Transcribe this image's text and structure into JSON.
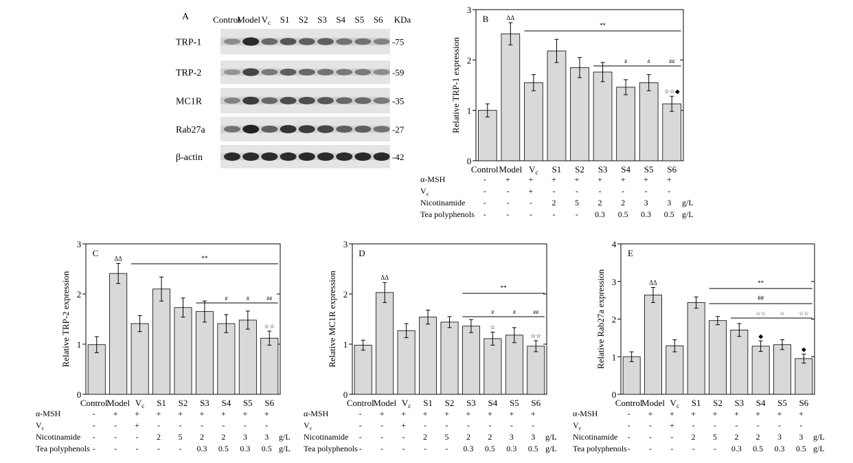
{
  "blot": {
    "panel_label": "A",
    "lanes": [
      "Control",
      "Model",
      "Vc",
      "S1",
      "S2",
      "S3",
      "S4",
      "S5",
      "S6"
    ],
    "kda_header": "KDa",
    "rows": [
      {
        "protein": "TRP-1",
        "kda": "-75",
        "intensity": [
          0.35,
          0.9,
          0.55,
          0.65,
          0.6,
          0.6,
          0.5,
          0.5,
          0.4
        ]
      },
      {
        "protein": "TRP-2",
        "kda": "-59",
        "intensity": [
          0.3,
          0.75,
          0.45,
          0.6,
          0.55,
          0.5,
          0.45,
          0.45,
          0.35
        ]
      },
      {
        "protein": "MC1R",
        "kda": "-35",
        "intensity": [
          0.4,
          0.8,
          0.55,
          0.7,
          0.7,
          0.65,
          0.55,
          0.55,
          0.45
        ]
      },
      {
        "protein": "Rab27a",
        "kda": "-27",
        "intensity": [
          0.5,
          0.95,
          0.6,
          0.85,
          0.8,
          0.75,
          0.6,
          0.6,
          0.5
        ]
      },
      {
        "protein": "β-actin",
        "kda": "-42",
        "intensity": [
          0.9,
          0.9,
          0.9,
          0.9,
          0.9,
          0.9,
          0.9,
          0.9,
          0.9
        ]
      }
    ]
  },
  "treatment_table": {
    "rows": [
      {
        "label": "α-MSH",
        "values": [
          "-",
          "+",
          "+",
          "+",
          "+",
          "+",
          "+",
          "+",
          "+"
        ],
        "unit": ""
      },
      {
        "label": "Vc",
        "values": [
          "-",
          "-",
          "+",
          "-",
          "-",
          "-",
          "-",
          "-",
          "-"
        ],
        "unit": ""
      },
      {
        "label": "Nicotinamide",
        "values": [
          "-",
          "-",
          "-",
          "2",
          "5",
          "2",
          "2",
          "3",
          "3"
        ],
        "unit": "g/L"
      },
      {
        "label": "Tea polyphenols",
        "values": [
          "-",
          "-",
          "-",
          "-",
          "-",
          "0.3",
          "0.5",
          "0.3",
          "0.5"
        ],
        "unit": "g/L"
      }
    ]
  },
  "chart_data": [
    {
      "type": "bar",
      "panel": "B",
      "categories": [
        "Control",
        "Model",
        "Vc",
        "S1",
        "S2",
        "S3",
        "S4",
        "S5",
        "S6"
      ],
      "values": [
        1.0,
        2.52,
        1.55,
        2.18,
        1.85,
        1.76,
        1.46,
        1.55,
        1.13
      ],
      "errors": [
        0.13,
        0.22,
        0.16,
        0.23,
        0.2,
        0.19,
        0.15,
        0.16,
        0.15
      ],
      "ylabel": "Relative TRP-1 expression",
      "ylim": [
        0,
        3
      ],
      "yticks": [
        0,
        1,
        2,
        3
      ],
      "bar_marks": [
        "",
        "ΔΔ",
        "",
        "",
        "",
        "",
        "",
        "",
        "☆☆◆"
      ],
      "brackets": [
        {
          "from": 2,
          "to": 8,
          "label": "**"
        },
        {
          "from": 5,
          "to": 8,
          "label": "",
          "segment_labels": [
            "#",
            "#",
            "##"
          ]
        }
      ]
    },
    {
      "type": "bar",
      "panel": "C",
      "categories": [
        "Control",
        "Model",
        "Vc",
        "S1",
        "S2",
        "S3",
        "S4",
        "S5",
        "S6"
      ],
      "values": [
        0.99,
        2.41,
        1.41,
        2.1,
        1.73,
        1.65,
        1.41,
        1.48,
        1.12
      ],
      "errors": [
        0.16,
        0.2,
        0.16,
        0.24,
        0.19,
        0.21,
        0.18,
        0.18,
        0.14
      ],
      "ylabel": "Relative TRP-2 expression",
      "ylim": [
        0,
        3
      ],
      "yticks": [
        0,
        1,
        2,
        3
      ],
      "bar_marks": [
        "",
        "ΔΔ",
        "",
        "",
        "",
        "",
        "",
        "",
        "☆☆"
      ],
      "brackets": [
        {
          "from": 2,
          "to": 8,
          "label": "**"
        },
        {
          "from": 5,
          "to": 8,
          "label": "",
          "segment_labels": [
            "#",
            "#",
            "##"
          ]
        }
      ]
    },
    {
      "type": "bar",
      "panel": "D",
      "categories": [
        "Control",
        "Model",
        "Vc",
        "S1",
        "S2",
        "S3",
        "S4",
        "S5",
        "S6"
      ],
      "values": [
        0.98,
        2.03,
        1.27,
        1.54,
        1.44,
        1.36,
        1.11,
        1.18,
        0.96
      ],
      "errors": [
        0.1,
        0.2,
        0.14,
        0.14,
        0.11,
        0.13,
        0.13,
        0.15,
        0.11
      ],
      "ylabel": "Relative MC1R expression",
      "ylim": [
        0,
        3
      ],
      "yticks": [
        0,
        1,
        2,
        3
      ],
      "bar_marks": [
        "",
        "ΔΔ",
        "",
        "",
        "",
        "",
        "☆",
        "",
        "☆☆"
      ],
      "brackets": [
        {
          "from": 5,
          "to": 8,
          "label": "**"
        },
        {
          "from": 5,
          "to": 8,
          "label": "",
          "segment_labels": [
            "#",
            "#",
            "##"
          ]
        }
      ]
    },
    {
      "type": "bar",
      "panel": "E",
      "categories": [
        "Control",
        "Model",
        "Vc",
        "S1",
        "S2",
        "S3",
        "S4",
        "S5",
        "S6"
      ],
      "values": [
        1.0,
        2.64,
        1.29,
        2.44,
        1.96,
        1.71,
        1.28,
        1.32,
        0.95
      ],
      "errors": [
        0.13,
        0.2,
        0.16,
        0.15,
        0.11,
        0.17,
        0.14,
        0.13,
        0.12
      ],
      "ylabel": "Relative Rab27a expression",
      "ylim": [
        0,
        4
      ],
      "yticks": [
        0,
        1,
        2,
        3,
        4
      ],
      "bar_marks": [
        "",
        "ΔΔ",
        "",
        "",
        "",
        "",
        "◆",
        "",
        "◆"
      ],
      "brackets": [
        {
          "from": 4,
          "to": 8,
          "label": "**"
        },
        {
          "from": 4,
          "to": 8,
          "label": "##"
        },
        {
          "from": 5,
          "to": 8,
          "label": "",
          "segment_labels": [
            "☆☆",
            "☆",
            "☆☆"
          ]
        }
      ]
    }
  ]
}
